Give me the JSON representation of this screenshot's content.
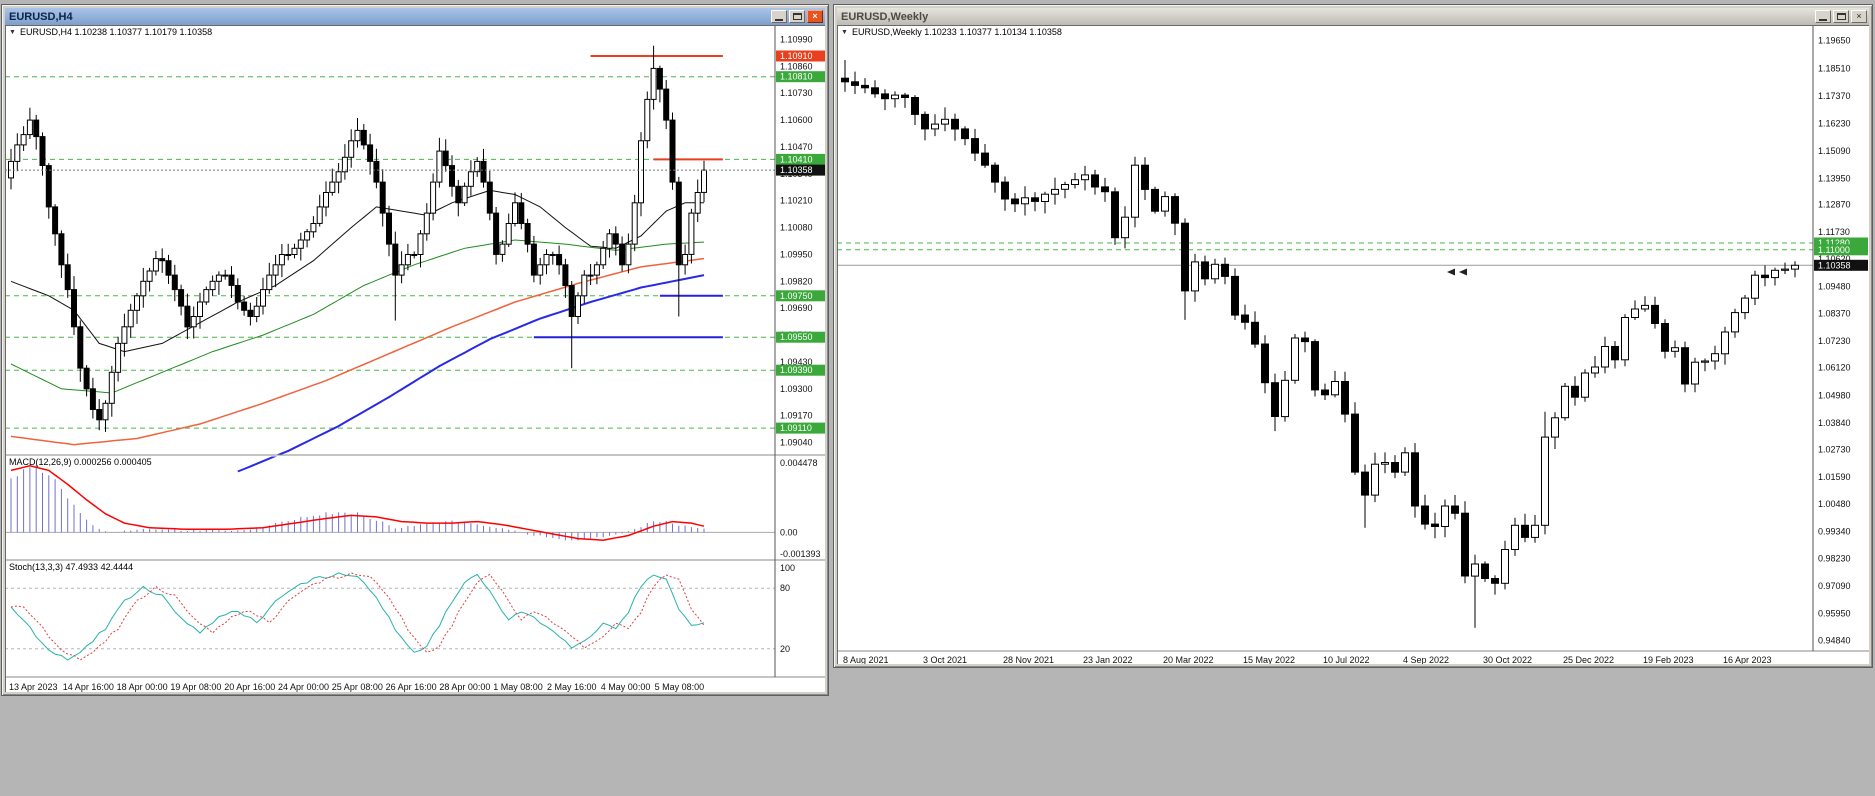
{
  "app": {
    "icons": {
      "close": "×",
      "chevron_down": "▼"
    },
    "desktop_bg": "#b5b5b5"
  },
  "left_window": {
    "title": "EURUSD,H4",
    "header": {
      "text": "EURUSD,H4 1.10238 1.10377 1.10179 1.10358"
    },
    "price_axis_labels": [
      "1.10990",
      "1.10860",
      "1.10730",
      "1.10600",
      "1.10470",
      "1.10340",
      "1.10210",
      "1.10080",
      "1.09950",
      "1.09820",
      "1.09690",
      "1.09560",
      "1.09430",
      "1.09300",
      "1.09170",
      "1.09040"
    ],
    "badges": [
      {
        "price": 1.1091,
        "text": "1.10910",
        "bg": "#e8401f"
      },
      {
        "price": 1.1081,
        "text": "1.10810",
        "bg": "#3aa83a"
      },
      {
        "price": 1.1041,
        "text": "1.10410",
        "bg": "#3aa83a"
      },
      {
        "price": 1.10358,
        "text": "1.10358",
        "bg": "#111111"
      },
      {
        "price": 1.0975,
        "text": "1.09750",
        "bg": "#3aa83a"
      },
      {
        "price": 1.0955,
        "text": "1.09550",
        "bg": "#3aa83a"
      },
      {
        "price": 1.0939,
        "text": "1.09390",
        "bg": "#3aa83a"
      },
      {
        "price": 1.0911,
        "text": "1.09110",
        "bg": "#3aa83a"
      }
    ],
    "time_axis": [
      "13 Apr 2023",
      "14 Apr 16:00",
      "18 Apr 00:00",
      "19 Apr 08:00",
      "20 Apr 16:00",
      "24 Apr 00:00",
      "25 Apr 08:00",
      "26 Apr 16:00",
      "28 Apr 00:00",
      "1 May 08:00",
      "2 May 16:00",
      "4 May 00:00",
      "5 May 08:00"
    ],
    "chart_data": {
      "type": "candlestick",
      "symbol": "EURUSD",
      "timeframe": "H4",
      "ylim": [
        1.0898,
        1.1106
      ],
      "current_price": 1.10358,
      "closes": [
        1.104,
        1.1048,
        1.1053,
        1.106,
        1.1052,
        1.1038,
        1.1018,
        1.1005,
        1.099,
        1.0978,
        1.096,
        1.094,
        1.093,
        1.092,
        1.0915,
        1.0923,
        1.0938,
        1.0952,
        1.096,
        1.0968,
        1.0975,
        1.0982,
        1.0987,
        1.0993,
        1.0992,
        1.0985,
        1.0978,
        1.097,
        1.096,
        1.0965,
        1.0972,
        1.0978,
        1.0982,
        1.0985,
        1.0985,
        1.098,
        1.0972,
        1.0968,
        1.0965,
        1.097,
        1.0978,
        1.0985,
        1.099,
        1.0995,
        1.0995,
        1.0998,
        1.1002,
        1.1006,
        1.101,
        1.1018,
        1.1025,
        1.103,
        1.1035,
        1.1042,
        1.105,
        1.1055,
        1.1048,
        1.104,
        1.103,
        1.1015,
        1.1,
        1.0985,
        1.099,
        1.0995,
        1.0995,
        1.1005,
        1.1015,
        1.103,
        1.1045,
        1.1038,
        1.1028,
        1.102,
        1.1028,
        1.1035,
        1.104,
        1.103,
        1.1015,
        1.0995,
        1.1,
        1.101,
        1.102,
        1.101,
        1.1,
        1.0985,
        1.099,
        1.0995,
        1.0995,
        1.099,
        1.098,
        1.0965,
        1.0975,
        1.0985,
        1.0985,
        1.099,
        1.0998,
        1.1005,
        1.1,
        1.099,
        1.1,
        1.102,
        1.105,
        1.107,
        1.1085,
        1.1075,
        1.106,
        1.103,
        1.099,
        1.0995,
        1.1015,
        1.1025,
        1.10358
      ],
      "wick_overrides": {
        "3": {
          "high": 1.1066
        },
        "14": {
          "low": 1.091
        },
        "55": {
          "high": 1.1061
        },
        "61": {
          "low": 1.0963
        },
        "89": {
          "low": 1.094
        },
        "102": {
          "high": 1.1096
        },
        "106": {
          "low": 1.0965
        }
      },
      "levels_dashed_green": [
        1.1081,
        1.1041,
        1.0975,
        1.0955,
        1.0939,
        1.0911
      ],
      "level_color": "#49b649",
      "segments": [
        {
          "price": 1.1091,
          "from": 92,
          "to": 113,
          "color": "#e8401f",
          "width": 2
        },
        {
          "price": 1.1041,
          "from": 102,
          "to": 113,
          "color": "#e8401f",
          "width": 2
        },
        {
          "price": 1.0975,
          "from": 103,
          "to": 113,
          "color": "#2222dd",
          "width": 2
        },
        {
          "price": 1.0955,
          "from": 83,
          "to": 113,
          "color": "#2222dd",
          "width": 2
        }
      ],
      "ma_lines": [
        {
          "name": "ma-black",
          "color": "#111111",
          "width": 1,
          "points": [
            [
              0,
              1.0982
            ],
            [
              6,
              1.0975
            ],
            [
              10,
              1.0968
            ],
            [
              14,
              1.0952
            ],
            [
              18,
              1.0948
            ],
            [
              24,
              1.0952
            ],
            [
              30,
              1.0962
            ],
            [
              36,
              1.0972
            ],
            [
              42,
              1.098
            ],
            [
              48,
              1.0992
            ],
            [
              54,
              1.1008
            ],
            [
              58,
              1.1018
            ],
            [
              62,
              1.1016
            ],
            [
              66,
              1.1014
            ],
            [
              70,
              1.102
            ],
            [
              76,
              1.1026
            ],
            [
              80,
              1.1024
            ],
            [
              84,
              1.1018
            ],
            [
              88,
              1.1008
            ],
            [
              92,
              1.0999
            ],
            [
              96,
              1.0998
            ],
            [
              100,
              1.1004
            ],
            [
              104,
              1.1016
            ],
            [
              107,
              1.102
            ],
            [
              110,
              1.102
            ]
          ]
        },
        {
          "name": "ma-green",
          "color": "#1e8c1e",
          "width": 1,
          "points": [
            [
              0,
              1.0942
            ],
            [
              8,
              1.093
            ],
            [
              16,
              1.0928
            ],
            [
              24,
              1.0938
            ],
            [
              32,
              1.0948
            ],
            [
              40,
              1.0956
            ],
            [
              48,
              1.0966
            ],
            [
              56,
              1.098
            ],
            [
              64,
              1.099
            ],
            [
              72,
              1.0998
            ],
            [
              80,
              1.1002
            ],
            [
              88,
              1.1
            ],
            [
              96,
              1.0997
            ],
            [
              104,
              1.1
            ],
            [
              110,
              1.1001
            ]
          ]
        },
        {
          "name": "ma-orange",
          "color": "#f0633c",
          "width": 1.5,
          "points": [
            [
              0,
              1.0907
            ],
            [
              10,
              1.0903
            ],
            [
              20,
              1.0906
            ],
            [
              30,
              1.0913
            ],
            [
              40,
              1.0923
            ],
            [
              50,
              1.0934
            ],
            [
              60,
              1.0947
            ],
            [
              70,
              1.096
            ],
            [
              80,
              1.0972
            ],
            [
              90,
              1.0981
            ],
            [
              100,
              1.0989
            ],
            [
              110,
              1.0993
            ]
          ]
        },
        {
          "name": "ma-blue",
          "color": "#2929e8",
          "width": 2,
          "points": [
            [
              36,
              1.089
            ],
            [
              44,
              1.09
            ],
            [
              52,
              1.0912
            ],
            [
              60,
              1.0926
            ],
            [
              68,
              1.0941
            ],
            [
              76,
              1.0954
            ],
            [
              84,
              1.0964
            ],
            [
              92,
              1.0972
            ],
            [
              100,
              1.0979
            ],
            [
              110,
              1.0985
            ]
          ]
        }
      ]
    },
    "macd": {
      "label": "MACD(12,26,9) 0.000256 0.000405",
      "scale_labels": [
        "0.004478",
        "0.00",
        "-0.001393"
      ],
      "ylim": [
        -0.001393,
        0.004478
      ],
      "colors": {
        "hist": "#7070cf",
        "signal": "#ff0000"
      },
      "hist_keypoints": [
        [
          0,
          0.0036
        ],
        [
          2,
          0.0041
        ],
        [
          4,
          0.0043
        ],
        [
          6,
          0.0038
        ],
        [
          8,
          0.0028
        ],
        [
          10,
          0.0018
        ],
        [
          12,
          0.0008
        ],
        [
          14,
          0.0002
        ],
        [
          16,
          0.0
        ],
        [
          20,
          0.0002
        ],
        [
          24,
          0.0002
        ],
        [
          28,
          0.0001
        ],
        [
          32,
          0.0002
        ],
        [
          36,
          0.0001
        ],
        [
          40,
          0.0003
        ],
        [
          44,
          0.0008
        ],
        [
          48,
          0.0011
        ],
        [
          52,
          0.0013
        ],
        [
          55,
          0.0012
        ],
        [
          58,
          0.0008
        ],
        [
          61,
          0.0003
        ],
        [
          64,
          0.0004
        ],
        [
          67,
          0.0006
        ],
        [
          70,
          0.0007
        ],
        [
          73,
          0.0006
        ],
        [
          76,
          0.0004
        ],
        [
          79,
          0.0002
        ],
        [
          82,
          -0.0001
        ],
        [
          85,
          -0.0003
        ],
        [
          88,
          -0.0005
        ],
        [
          91,
          -0.0005
        ],
        [
          94,
          -0.0003
        ],
        [
          97,
          -0.0001
        ],
        [
          100,
          0.0004
        ],
        [
          102,
          0.0007
        ],
        [
          104,
          0.0007
        ],
        [
          106,
          0.0005
        ],
        [
          108,
          0.0003
        ],
        [
          110,
          0.00026
        ]
      ],
      "signal_keypoints": [
        [
          0,
          0.004
        ],
        [
          3,
          0.0043
        ],
        [
          6,
          0.004
        ],
        [
          9,
          0.0031
        ],
        [
          12,
          0.0021
        ],
        [
          15,
          0.0012
        ],
        [
          18,
          0.0006
        ],
        [
          22,
          0.0003
        ],
        [
          28,
          0.0002
        ],
        [
          34,
          0.0002
        ],
        [
          40,
          0.0003
        ],
        [
          45,
          0.0006
        ],
        [
          50,
          0.0009
        ],
        [
          54,
          0.0011
        ],
        [
          58,
          0.001
        ],
        [
          62,
          0.0007
        ],
        [
          66,
          0.0006
        ],
        [
          70,
          0.0006
        ],
        [
          74,
          0.0007
        ],
        [
          78,
          0.0005
        ],
        [
          82,
          0.0002
        ],
        [
          86,
          -0.0001
        ],
        [
          90,
          -0.0004
        ],
        [
          94,
          -0.0005
        ],
        [
          98,
          -0.0002
        ],
        [
          102,
          0.0004
        ],
        [
          105,
          0.0007
        ],
        [
          108,
          0.0006
        ],
        [
          110,
          0.0004
        ]
      ]
    },
    "stoch": {
      "label": "Stoch(13,3,3) 47.4933 42.4444",
      "scale_labels": [
        "100",
        "80",
        "20"
      ],
      "levels": [
        80,
        20
      ],
      "ylim": [
        0,
        100
      ],
      "signal_lag": 2,
      "colors": {
        "main": "#2ab3ab",
        "signal": "#e04040"
      },
      "main_keypoints": [
        [
          0,
          62
        ],
        [
          3,
          40
        ],
        [
          6,
          18
        ],
        [
          9,
          10
        ],
        [
          12,
          22
        ],
        [
          15,
          40
        ],
        [
          18,
          68
        ],
        [
          21,
          80
        ],
        [
          24,
          72
        ],
        [
          27,
          50
        ],
        [
          30,
          36
        ],
        [
          33,
          50
        ],
        [
          36,
          58
        ],
        [
          39,
          46
        ],
        [
          42,
          68
        ],
        [
          45,
          80
        ],
        [
          48,
          88
        ],
        [
          52,
          95
        ],
        [
          55,
          92
        ],
        [
          58,
          72
        ],
        [
          61,
          40
        ],
        [
          64,
          15
        ],
        [
          66,
          22
        ],
        [
          69,
          55
        ],
        [
          72,
          85
        ],
        [
          74,
          92
        ],
        [
          77,
          68
        ],
        [
          79,
          48
        ],
        [
          81,
          58
        ],
        [
          83,
          50
        ],
        [
          86,
          36
        ],
        [
          89,
          22
        ],
        [
          92,
          32
        ],
        [
          94,
          46
        ],
        [
          96,
          40
        ],
        [
          98,
          56
        ],
        [
          100,
          82
        ],
        [
          102,
          93
        ],
        [
          104,
          90
        ],
        [
          106,
          60
        ],
        [
          108,
          42
        ],
        [
          110,
          47.5
        ]
      ]
    }
  },
  "right_window": {
    "title": "EURUSD,Weekly",
    "header": {
      "text": "EURUSD,Weekly 1.10233 1.10377 1.10134 1.10358"
    },
    "price_axis_labels": [
      "1.19650",
      "1.18510",
      "1.17370",
      "1.16230",
      "1.15090",
      "1.13950",
      "1.12870",
      "1.11730",
      "1.10620",
      "1.09480",
      "1.08370",
      "1.07230",
      "1.06120",
      "1.04980",
      "1.03840",
      "1.02730",
      "1.01590",
      "1.00480",
      "0.99340",
      "0.98230",
      "0.97090",
      "0.95950",
      "0.94840"
    ],
    "badges": [
      {
        "price": 1.1128,
        "text": "1.11280",
        "bg": "#3aa83a"
      },
      {
        "price": 1.11,
        "text": "1.11000",
        "bg": "#3aa83a"
      },
      {
        "price": 1.10358,
        "text": "1.10358",
        "bg": "#111111"
      }
    ],
    "time_axis": [
      "8 Aug 2021",
      "3 Oct 2021",
      "28 Nov 2021",
      "23 Jan 2022",
      "20 Mar 2022",
      "15 May 2022",
      "10 Jul 2022",
      "4 Sep 2022",
      "30 Oct 2022",
      "25 Dec 2022",
      "19 Feb 2023",
      "16 Apr 2023"
    ],
    "chart_data": {
      "type": "candlestick",
      "symbol": "EURUSD",
      "timeframe": "Weekly",
      "ylim": [
        0.944,
        1.203
      ],
      "current_price": 1.10358,
      "closes": [
        1.1795,
        1.178,
        1.177,
        1.1745,
        1.1725,
        1.174,
        1.173,
        1.166,
        1.16,
        1.162,
        1.164,
        1.16,
        1.156,
        1.15,
        1.145,
        1.138,
        1.131,
        1.129,
        1.1315,
        1.13,
        1.133,
        1.135,
        1.137,
        1.139,
        1.141,
        1.136,
        1.134,
        1.115,
        1.1235,
        1.145,
        1.135,
        1.126,
        1.132,
        1.121,
        1.093,
        1.105,
        1.098,
        1.104,
        1.099,
        1.083,
        1.08,
        1.071,
        1.055,
        1.041,
        1.056,
        1.0735,
        1.072,
        1.052,
        1.05,
        1.0555,
        1.042,
        1.018,
        1.0085,
        1.0213,
        1.022,
        1.018,
        1.026,
        1.004,
        0.9965,
        0.9955,
        1.004,
        1.001,
        0.975,
        0.98,
        0.974,
        0.972,
        0.986,
        0.996,
        0.991,
        0.996,
        1.0325,
        1.0405,
        1.0535,
        1.049,
        1.059,
        1.0615,
        1.07,
        1.0645,
        1.082,
        1.0855,
        1.087,
        1.0795,
        1.068,
        1.0695,
        1.0545,
        1.0635,
        1.064,
        1.067,
        1.076,
        1.084,
        1.09,
        1.0995,
        1.0985,
        1.1015,
        1.102,
        1.10358
      ],
      "wick_overrides": {
        "0": {
          "high": 1.1885
        },
        "27": {
          "low": 1.112
        },
        "29": {
          "high": 1.1485
        },
        "34": {
          "low": 1.081
        },
        "43": {
          "low": 1.035
        },
        "52": {
          "low": 0.995
        },
        "63": {
          "low": 0.9536
        },
        "70": {
          "high": 1.043
        }
      },
      "levels_dashed_green": [
        1.1128,
        1.11
      ],
      "level_color": "#49b649",
      "markers": [
        {
          "i": 60.2,
          "p": 1.1008
        },
        {
          "i": 61.4,
          "p": 1.1008
        }
      ]
    }
  }
}
